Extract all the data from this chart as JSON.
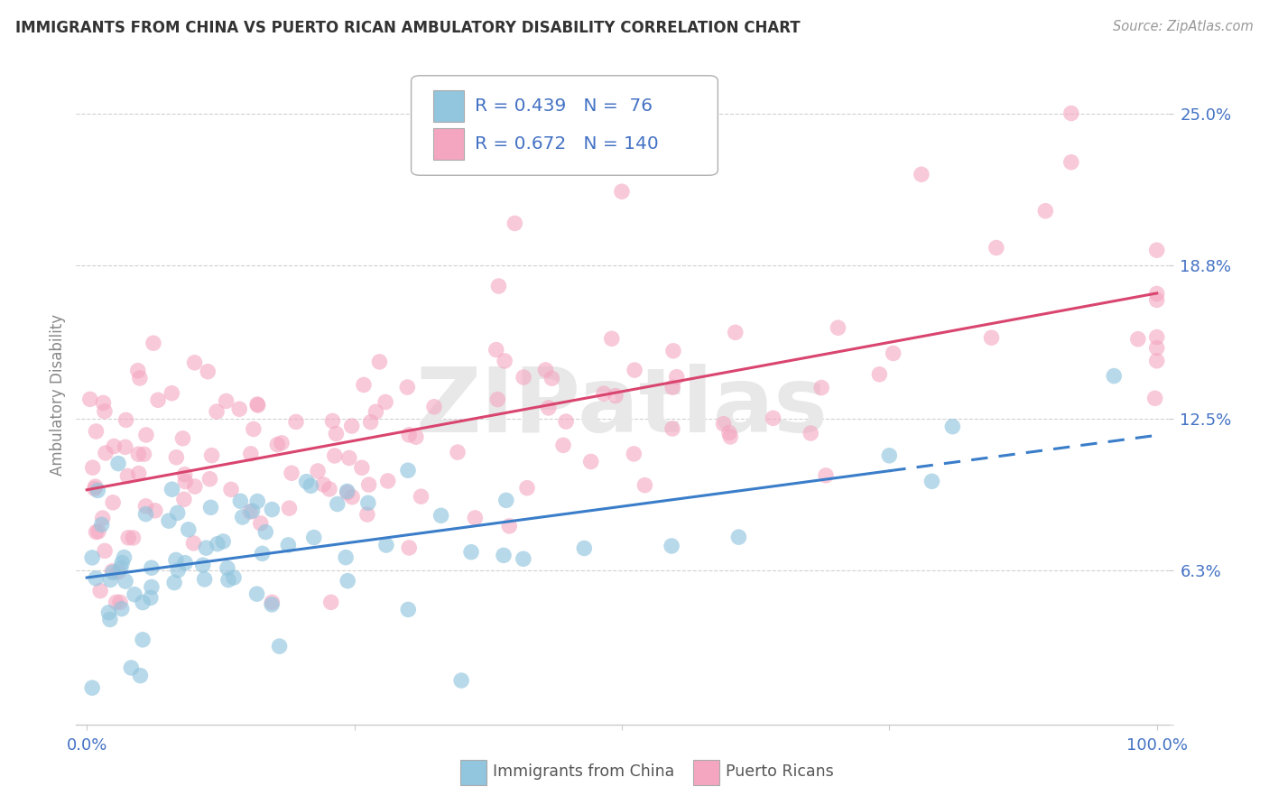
{
  "title": "IMMIGRANTS FROM CHINA VS PUERTO RICAN AMBULATORY DISABILITY CORRELATION CHART",
  "source": "Source: ZipAtlas.com",
  "ylabel": "Ambulatory Disability",
  "series1_label": "Immigrants from China",
  "series2_label": "Puerto Ricans",
  "series1_R": 0.439,
  "series1_N": 76,
  "series2_R": 0.672,
  "series2_N": 140,
  "series1_color": "#92c5de",
  "series2_color": "#f4a6c0",
  "line1_color": "#3a7dc9",
  "line2_color": "#d9456e",
  "xlim": [
    -1.0,
    101.0
  ],
  "ylim": [
    0.0,
    27.0
  ],
  "ytick_vals": [
    0.0,
    6.3,
    12.5,
    18.8,
    25.0
  ],
  "ytick_labels": [
    "",
    "6.3%",
    "12.5%",
    "18.8%",
    "25.0%"
  ],
  "xtick_vals": [
    0.0,
    25.0,
    50.0,
    75.0,
    100.0
  ],
  "xtick_labels": [
    "0.0%",
    "",
    "",
    "",
    "100.0%"
  ],
  "background_color": "#ffffff",
  "grid_color": "#cccccc",
  "title_color": "#333333",
  "source_color": "#999999",
  "tick_color": "#4472c4",
  "legend_text_color": "#4472c4",
  "ylabel_color": "#888888",
  "watermark_text": "ZIPatlas",
  "watermark_color": "#e8e8e8",
  "seed1": 7777,
  "seed2": 8888
}
